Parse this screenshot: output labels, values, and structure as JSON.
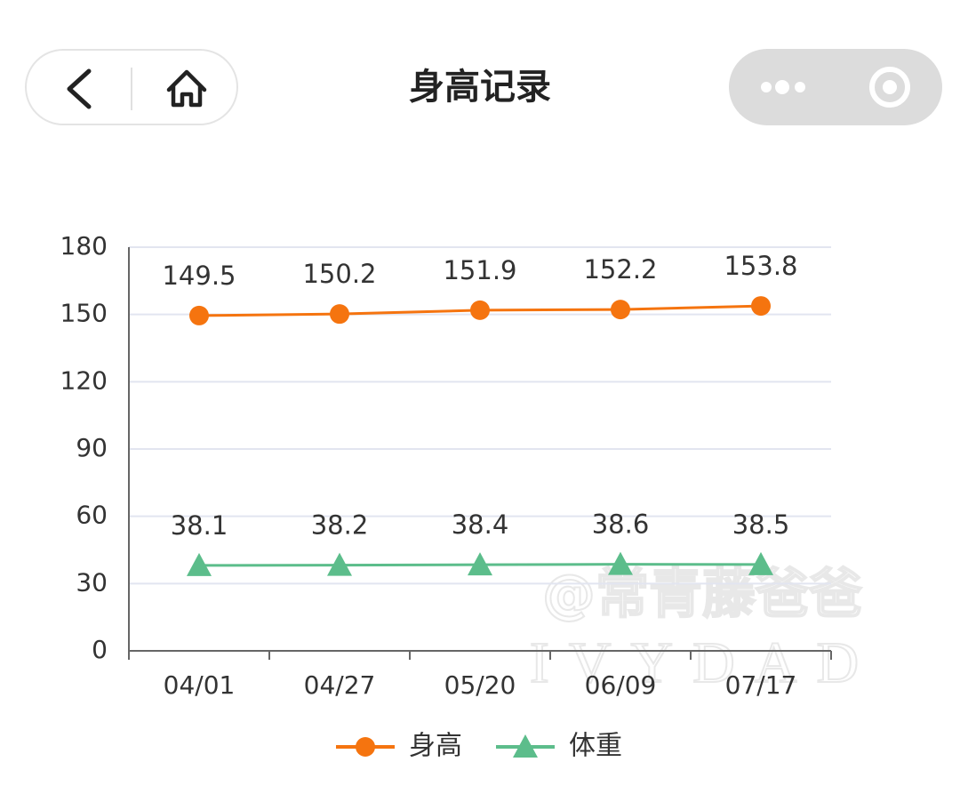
{
  "header": {
    "title": "身高记录"
  },
  "watermark": [
    "@常青藤爸爸",
    "IVYDAD"
  ],
  "chart_data": {
    "type": "line",
    "categories": [
      "04/01",
      "04/27",
      "05/20",
      "06/09",
      "07/17"
    ],
    "series": [
      {
        "name": "身高",
        "color": "#f5740f",
        "marker": "circle",
        "values": [
          149.5,
          150.2,
          151.9,
          152.2,
          153.8
        ]
      },
      {
        "name": "体重",
        "color": "#5cbd8b",
        "marker": "triangle",
        "values": [
          38.1,
          38.2,
          38.4,
          38.6,
          38.5
        ]
      }
    ],
    "ylim": [
      0,
      180
    ],
    "yticks": [
      0,
      30,
      60,
      90,
      120,
      150,
      180
    ],
    "grid": true,
    "legend": "bottom"
  }
}
